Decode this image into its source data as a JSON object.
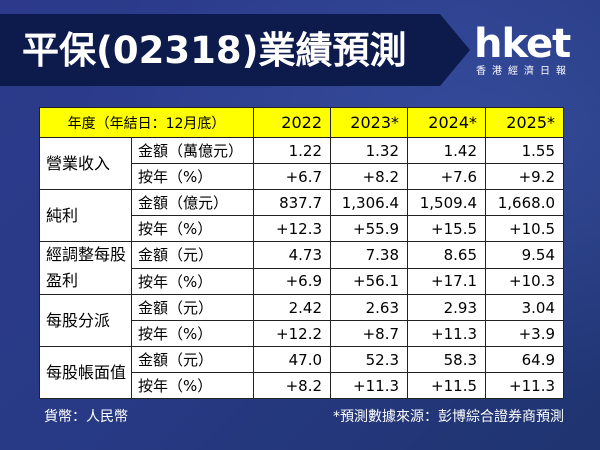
{
  "title": "平保(02318)業績預測",
  "logo": {
    "wordmark": "hket",
    "subtitle": "香港經濟日報"
  },
  "table": {
    "header": {
      "label": "年度（年結日：12月底）",
      "years": [
        "2022",
        "2023*",
        "2024*",
        "2025*"
      ]
    },
    "groups": [
      {
        "category": "營業收入",
        "rows": [
          {
            "metric": "金額（萬億元）",
            "values": [
              "1.22",
              "1.32",
              "1.42",
              "1.55"
            ]
          },
          {
            "metric": "按年（%）",
            "values": [
              "+6.7",
              "+8.2",
              "+7.6",
              "+9.2"
            ]
          }
        ]
      },
      {
        "category": "純利",
        "rows": [
          {
            "metric": "金額（億元）",
            "values": [
              "837.7",
              "1,306.4",
              "1,509.4",
              "1,668.0"
            ]
          },
          {
            "metric": "按年（%）",
            "values": [
              "+12.3",
              "+55.9",
              "+15.5",
              "+10.5"
            ]
          }
        ]
      },
      {
        "category": "經調整每股盈利",
        "rows": [
          {
            "metric": "金額（元）",
            "values": [
              "4.73",
              "7.38",
              "8.65",
              "9.54"
            ]
          },
          {
            "metric": "按年（%）",
            "values": [
              "+6.9",
              "+56.1",
              "+17.1",
              "+10.3"
            ]
          }
        ]
      },
      {
        "category": "每股分派",
        "rows": [
          {
            "metric": "金額（元）",
            "values": [
              "2.42",
              "2.63",
              "2.93",
              "3.04"
            ]
          },
          {
            "metric": "按年（%）",
            "values": [
              "+12.2",
              "+8.7",
              "+11.3",
              "+3.9"
            ]
          }
        ]
      },
      {
        "category": "每股帳面值",
        "rows": [
          {
            "metric": "金額（元）",
            "values": [
              "47.0",
              "52.3",
              "58.3",
              "64.9"
            ]
          },
          {
            "metric": "按年（%）",
            "values": [
              "+8.2",
              "+11.3",
              "+11.5",
              "+11.3"
            ]
          }
        ]
      }
    ]
  },
  "footer": {
    "currency": "貨幣：人民幣",
    "source": "*預測數據來源：彭博綜合證券商預測"
  },
  "colors": {
    "header_bg": "#ffff00",
    "banner_bg": "#0d1a4c",
    "page_bg": "#283a86"
  }
}
